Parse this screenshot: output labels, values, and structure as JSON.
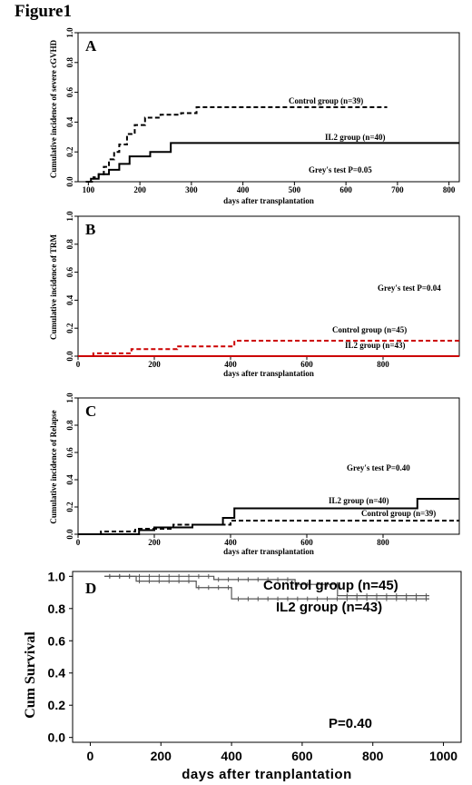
{
  "figure": {
    "title": "Figure1"
  },
  "chart_data": [
    {
      "panel": "A",
      "type": "line",
      "step": true,
      "xlabel": "days after transplantation",
      "ylabel": "Cumulative incidence of severe cGVHD",
      "xlim": [
        80,
        820
      ],
      "ylim": [
        0,
        1.0
      ],
      "xticks": [
        100,
        200,
        300,
        400,
        500,
        600,
        700,
        800
      ],
      "yticks": [
        0.0,
        0.2,
        0.4,
        0.6,
        0.8,
        1.0
      ],
      "series": [
        {
          "name": "Control group (n=39)",
          "style": "dashed",
          "color": "#000000",
          "x": [
            100,
            110,
            120,
            130,
            140,
            150,
            160,
            175,
            190,
            210,
            240,
            280,
            310,
            680
          ],
          "y": [
            0,
            0.03,
            0.05,
            0.1,
            0.15,
            0.2,
            0.25,
            0.32,
            0.38,
            0.43,
            0.45,
            0.46,
            0.5,
            0.5
          ]
        },
        {
          "name": "IL2 group (n=40)",
          "style": "solid",
          "color": "#000000",
          "x": [
            95,
            105,
            120,
            140,
            160,
            180,
            220,
            260,
            820
          ],
          "y": [
            0,
            0.02,
            0.05,
            0.08,
            0.12,
            0.17,
            0.2,
            0.26,
            0.26
          ]
        }
      ],
      "annotations": [
        "Grey's test P=0.05"
      ]
    },
    {
      "panel": "B",
      "type": "line",
      "step": true,
      "xlabel": "days after transplantation",
      "ylabel": "Cumulative incidence of TRM",
      "xlim": [
        0,
        1000
      ],
      "ylim": [
        0,
        1.0
      ],
      "xticks": [
        0,
        200,
        400,
        600,
        800
      ],
      "yticks": [
        0.0,
        0.2,
        0.4,
        0.6,
        0.8,
        1.0
      ],
      "series": [
        {
          "name": "Control group (n=45)",
          "style": "dashed",
          "color": "#cc0000",
          "x": [
            0,
            40,
            140,
            260,
            410,
            1000
          ],
          "y": [
            0,
            0.02,
            0.05,
            0.07,
            0.11,
            0.11
          ]
        },
        {
          "name": "IL2 group (n=43)",
          "style": "solid",
          "color": "#cc0000",
          "x": [
            0,
            1000
          ],
          "y": [
            0,
            0
          ]
        }
      ],
      "annotations": [
        "Grey's test P=0.04"
      ]
    },
    {
      "panel": "C",
      "type": "line",
      "step": true,
      "xlabel": "days after transplantation",
      "ylabel": "Cumulative incidence of Relapse",
      "xlim": [
        0,
        1000
      ],
      "ylim": [
        0,
        1.0
      ],
      "xticks": [
        0,
        200,
        400,
        600,
        800
      ],
      "yticks": [
        0.0,
        0.2,
        0.4,
        0.6,
        0.8,
        1.0
      ],
      "series": [
        {
          "name": "IL2 group (n=40)",
          "style": "solid",
          "color": "#000000",
          "x": [
            0,
            160,
            200,
            300,
            380,
            410,
            890,
            1000
          ],
          "y": [
            0,
            0.03,
            0.05,
            0.07,
            0.12,
            0.19,
            0.26,
            0.26
          ]
        },
        {
          "name": "Control group (n=39)",
          "style": "dashed",
          "color": "#000000",
          "x": [
            0,
            60,
            150,
            250,
            400,
            1000
          ],
          "y": [
            0,
            0.02,
            0.04,
            0.07,
            0.1,
            0.1
          ]
        }
      ],
      "annotations": [
        "Grey's test P=0.40"
      ]
    },
    {
      "panel": "D",
      "type": "line",
      "step": true,
      "xlabel": "days after tranplantation",
      "ylabel": "Cum Survival",
      "xlim": [
        -50,
        1050
      ],
      "ylim": [
        0,
        1.0
      ],
      "xticks": [
        0,
        200,
        400,
        600,
        800,
        1000
      ],
      "yticks": [
        0.0,
        0.2,
        0.4,
        0.6,
        0.8,
        1.0
      ],
      "series": [
        {
          "name": "Control group (n=45)",
          "style": "solid",
          "color": "#555555",
          "x": [
            40,
            350,
            580,
            700,
            960
          ],
          "y": [
            1.0,
            0.98,
            0.95,
            0.88,
            0.88
          ]
        },
        {
          "name": "IL2 group (n=43)",
          "style": "solid",
          "color": "#555555",
          "x": [
            40,
            130,
            300,
            400,
            960
          ],
          "y": [
            1.0,
            0.97,
            0.93,
            0.86,
            0.86
          ]
        }
      ],
      "annotations": [
        "P=0.40"
      ]
    }
  ]
}
